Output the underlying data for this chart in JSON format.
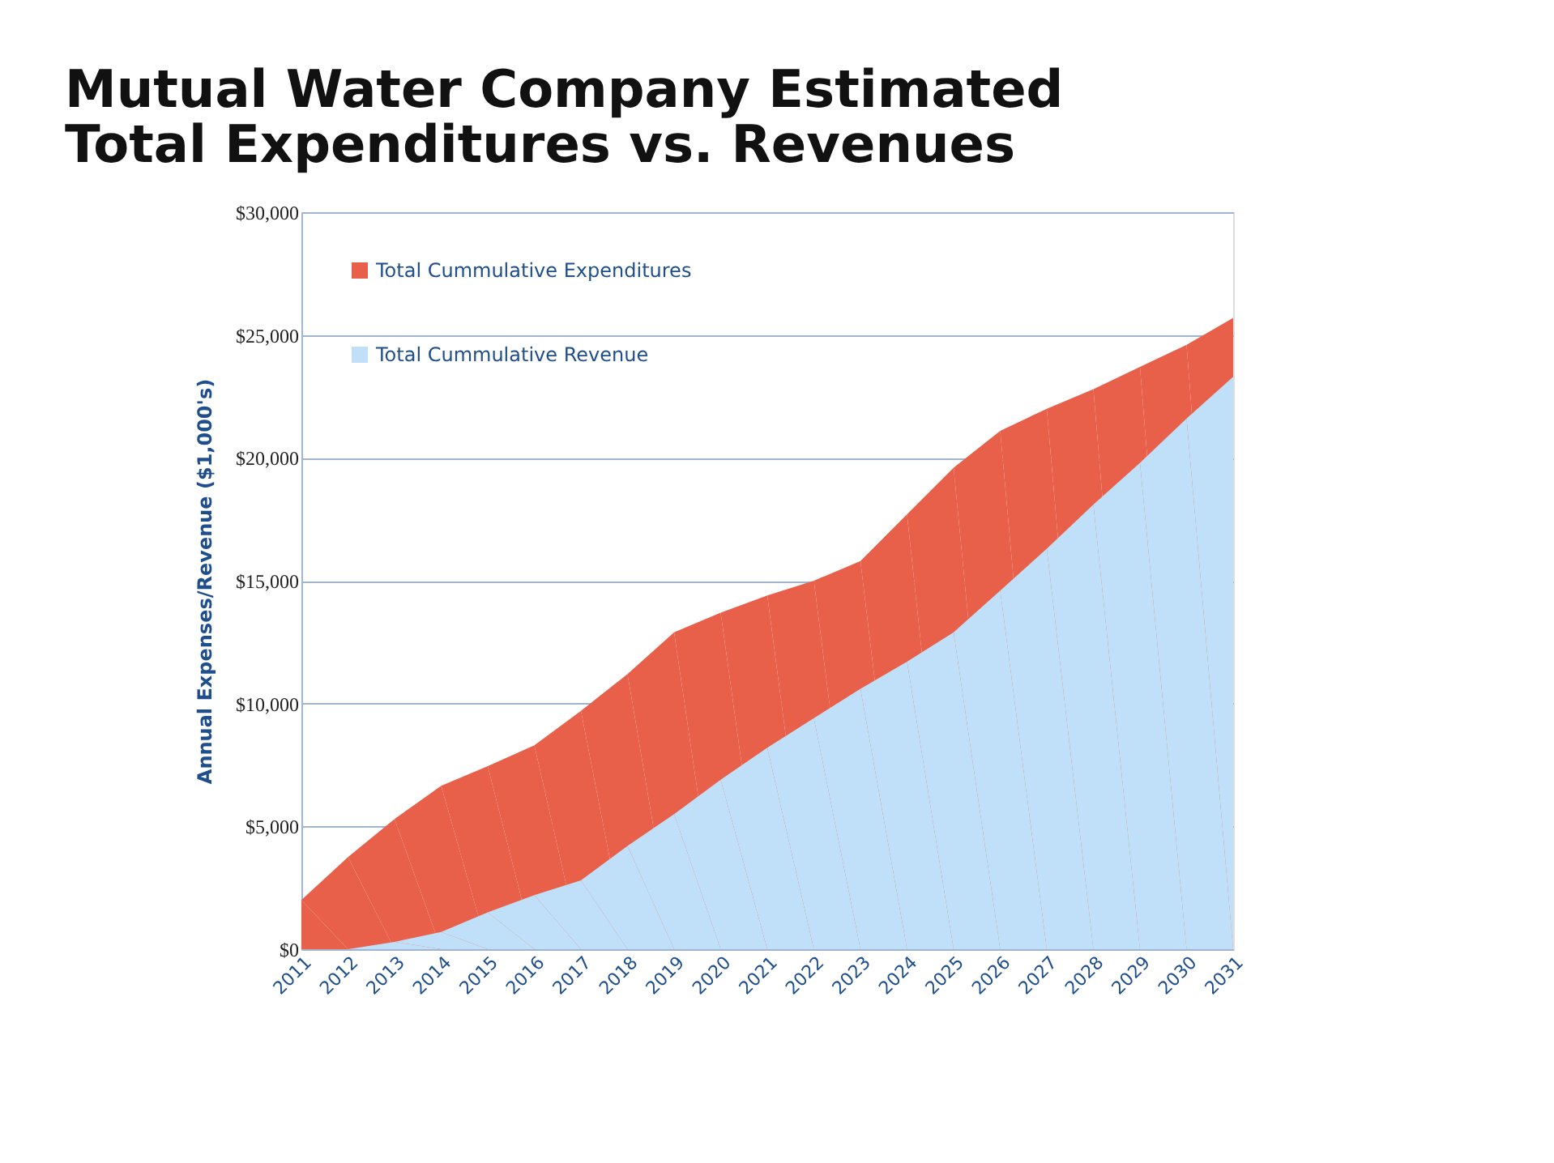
{
  "chart_data": {
    "type": "area",
    "title": "Mutual Water Company Estimated Total Expenditures vs. Revenues",
    "ylabel": "Annual Expenses/Revenue ($1,000's)",
    "categories": [
      "2011",
      "2012",
      "2013",
      "2014",
      "2015",
      "2016",
      "2017",
      "2018",
      "2019",
      "2020",
      "2021",
      "2022",
      "2023",
      "2024",
      "2025",
      "2026",
      "2027",
      "2028",
      "2029",
      "2030",
      "2031"
    ],
    "series": [
      {
        "name": "Total Cummulative Expenditures",
        "color": "#e8604a",
        "values": [
          2000,
          3750,
          5300,
          6650,
          7450,
          8300,
          9700,
          11200,
          12900,
          13700,
          14400,
          15000,
          15800,
          17700,
          19600,
          21100,
          22000,
          22800,
          23700,
          24600,
          25700
        ]
      },
      {
        "name": "Total Cummulative Revenue",
        "color": "#bfe0f8",
        "values": [
          0,
          0,
          300,
          700,
          1500,
          2200,
          2800,
          4200,
          5500,
          6900,
          8200,
          9400,
          10600,
          11700,
          12900,
          14600,
          16300,
          18100,
          19800,
          21600,
          23300
        ]
      }
    ],
    "ylim": [
      0,
      30000
    ],
    "yticks": [
      {
        "value": 0,
        "label": "$0"
      },
      {
        "value": 5000,
        "label": "$5,000"
      },
      {
        "value": 10000,
        "label": "$10,000"
      },
      {
        "value": 15000,
        "label": "$15,000"
      },
      {
        "value": 20000,
        "label": "$20,000"
      },
      {
        "value": 25000,
        "label": "$25,000"
      },
      {
        "value": 30000,
        "label": "$30,000"
      }
    ],
    "grid": "y",
    "legend": "top left"
  }
}
